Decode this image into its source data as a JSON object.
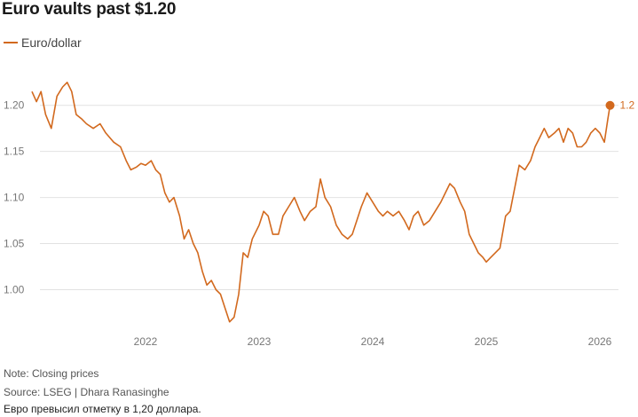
{
  "title": "Euro vaults past $1.20",
  "legend_label": "Euro/dollar",
  "note": "Note: Closing prices",
  "source": "Source: LSEG | Dhara Ranasinghe",
  "caption": "Евро превысил отметку в 1,20 доллара.",
  "colors": {
    "series": "#d2691e",
    "grid": "#e2e2e2",
    "tick_text": "#777777"
  },
  "chart_data": {
    "type": "line",
    "title": "Euro vaults past $1.20",
    "ylim": [
      0.96,
      1.245
    ],
    "y_ticks": [
      "1.00",
      "1.05",
      "1.10",
      "1.15",
      "1.20"
    ],
    "x_ticks": [
      "2022",
      "2023",
      "2024",
      "2025",
      "2026"
    ],
    "grid": "horizontal",
    "legend": "top-left",
    "end_label": "1.2",
    "series": [
      {
        "name": "Euro/dollar",
        "points": [
          [
            2021.0,
            1.215
          ],
          [
            2021.04,
            1.204
          ],
          [
            2021.08,
            1.215
          ],
          [
            2021.12,
            1.19
          ],
          [
            2021.17,
            1.175
          ],
          [
            2021.22,
            1.21
          ],
          [
            2021.27,
            1.22
          ],
          [
            2021.31,
            1.225
          ],
          [
            2021.35,
            1.215
          ],
          [
            2021.39,
            1.19
          ],
          [
            2021.44,
            1.185
          ],
          [
            2021.48,
            1.18
          ],
          [
            2021.54,
            1.175
          ],
          [
            2021.6,
            1.18
          ],
          [
            2021.65,
            1.17
          ],
          [
            2021.72,
            1.16
          ],
          [
            2021.78,
            1.155
          ],
          [
            2021.83,
            1.14
          ],
          [
            2021.87,
            1.13
          ],
          [
            2021.92,
            1.133
          ],
          [
            2021.96,
            1.137
          ],
          [
            2022.0,
            1.135
          ],
          [
            2022.05,
            1.14
          ],
          [
            2022.09,
            1.13
          ],
          [
            2022.13,
            1.125
          ],
          [
            2022.17,
            1.105
          ],
          [
            2022.21,
            1.095
          ],
          [
            2022.25,
            1.1
          ],
          [
            2022.3,
            1.08
          ],
          [
            2022.34,
            1.055
          ],
          [
            2022.38,
            1.065
          ],
          [
            2022.42,
            1.05
          ],
          [
            2022.46,
            1.04
          ],
          [
            2022.5,
            1.02
          ],
          [
            2022.54,
            1.005
          ],
          [
            2022.58,
            1.01
          ],
          [
            2022.62,
            1.0
          ],
          [
            2022.66,
            0.995
          ],
          [
            2022.7,
            0.98
          ],
          [
            2022.74,
            0.965
          ],
          [
            2022.78,
            0.97
          ],
          [
            2022.82,
            0.995
          ],
          [
            2022.86,
            1.04
          ],
          [
            2022.9,
            1.035
          ],
          [
            2022.94,
            1.055
          ],
          [
            2023.0,
            1.07
          ],
          [
            2023.04,
            1.085
          ],
          [
            2023.08,
            1.08
          ],
          [
            2023.12,
            1.06
          ],
          [
            2023.17,
            1.06
          ],
          [
            2023.21,
            1.08
          ],
          [
            2023.26,
            1.09
          ],
          [
            2023.31,
            1.1
          ],
          [
            2023.36,
            1.085
          ],
          [
            2023.4,
            1.075
          ],
          [
            2023.45,
            1.085
          ],
          [
            2023.5,
            1.09
          ],
          [
            2023.54,
            1.12
          ],
          [
            2023.58,
            1.1
          ],
          [
            2023.63,
            1.09
          ],
          [
            2023.68,
            1.07
          ],
          [
            2023.73,
            1.06
          ],
          [
            2023.78,
            1.055
          ],
          [
            2023.82,
            1.06
          ],
          [
            2023.86,
            1.075
          ],
          [
            2023.9,
            1.09
          ],
          [
            2023.95,
            1.105
          ],
          [
            2024.0,
            1.095
          ],
          [
            2024.05,
            1.085
          ],
          [
            2024.09,
            1.08
          ],
          [
            2024.13,
            1.085
          ],
          [
            2024.18,
            1.08
          ],
          [
            2024.23,
            1.085
          ],
          [
            2024.28,
            1.075
          ],
          [
            2024.32,
            1.065
          ],
          [
            2024.36,
            1.08
          ],
          [
            2024.4,
            1.085
          ],
          [
            2024.45,
            1.07
          ],
          [
            2024.5,
            1.075
          ],
          [
            2024.55,
            1.085
          ],
          [
            2024.6,
            1.095
          ],
          [
            2024.64,
            1.105
          ],
          [
            2024.68,
            1.115
          ],
          [
            2024.72,
            1.11
          ],
          [
            2024.77,
            1.095
          ],
          [
            2024.81,
            1.085
          ],
          [
            2024.85,
            1.06
          ],
          [
            2024.89,
            1.05
          ],
          [
            2024.93,
            1.04
          ],
          [
            2024.97,
            1.035
          ],
          [
            2025.0,
            1.03
          ],
          [
            2025.04,
            1.035
          ],
          [
            2025.08,
            1.04
          ],
          [
            2025.12,
            1.045
          ],
          [
            2025.17,
            1.08
          ],
          [
            2025.21,
            1.085
          ],
          [
            2025.25,
            1.11
          ],
          [
            2025.29,
            1.135
          ],
          [
            2025.34,
            1.13
          ],
          [
            2025.39,
            1.14
          ],
          [
            2025.43,
            1.155
          ],
          [
            2025.47,
            1.165
          ],
          [
            2025.51,
            1.175
          ],
          [
            2025.55,
            1.165
          ],
          [
            2025.6,
            1.17
          ],
          [
            2025.64,
            1.175
          ],
          [
            2025.68,
            1.16
          ],
          [
            2025.72,
            1.175
          ],
          [
            2025.76,
            1.17
          ],
          [
            2025.8,
            1.155
          ],
          [
            2025.84,
            1.155
          ],
          [
            2025.88,
            1.16
          ],
          [
            2025.92,
            1.17
          ],
          [
            2025.96,
            1.175
          ],
          [
            2026.0,
            1.17
          ],
          [
            2026.04,
            1.16
          ],
          [
            2026.07,
            1.185
          ],
          [
            2026.09,
            1.2
          ]
        ]
      }
    ]
  }
}
